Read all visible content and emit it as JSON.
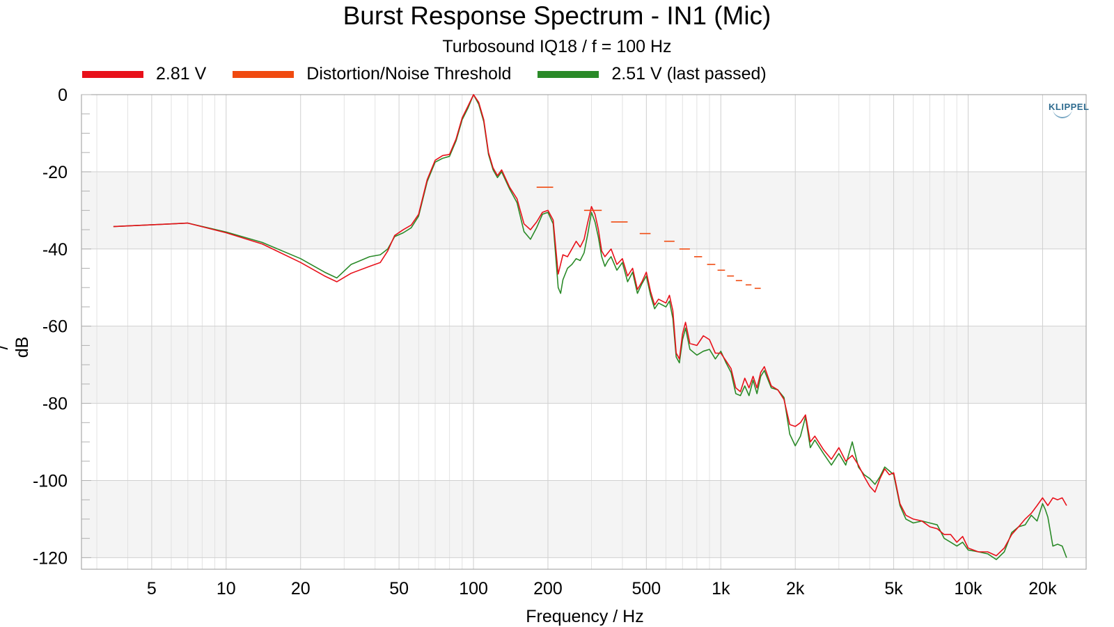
{
  "title": "Burst Response Spectrum - IN1 (Mic)",
  "subtitle": "Turbosound IQ18 / f = 100 Hz",
  "logo_text": "KLIPPEL",
  "legend": [
    {
      "label": "2.81 V",
      "color": "#e8101a"
    },
    {
      "label": "Distortion/Noise Threshold",
      "color": "#f04a10"
    },
    {
      "label": "2.51 V (last passed)",
      "color": "#2a8a28"
    }
  ],
  "chart_data": {
    "type": "line",
    "title": "Burst Response Spectrum - IN1 (Mic)",
    "subtitle": "Turbosound IQ18 / f = 100 Hz",
    "xlabel": "Frequency / Hz",
    "ylabel": "/ dB",
    "x_scale": "log",
    "xlim": [
      2.6,
      30000
    ],
    "ylim": [
      -123,
      0
    ],
    "grid": true,
    "legend_position": "top",
    "x_ticks": [
      {
        "value": 5,
        "label": "5"
      },
      {
        "value": 10,
        "label": "10"
      },
      {
        "value": 20,
        "label": "20"
      },
      {
        "value": 50,
        "label": "50"
      },
      {
        "value": 100,
        "label": "100"
      },
      {
        "value": 200,
        "label": "200"
      },
      {
        "value": 500,
        "label": "500"
      },
      {
        "value": 1000,
        "label": "1k"
      },
      {
        "value": 2000,
        "label": "2k"
      },
      {
        "value": 5000,
        "label": "5k"
      },
      {
        "value": 10000,
        "label": "10k"
      },
      {
        "value": 20000,
        "label": "20k"
      }
    ],
    "y_ticks": [
      0,
      -20,
      -40,
      -60,
      -80,
      -100,
      -120
    ],
    "series": [
      {
        "name": "2.81 V",
        "color": "#e8101a",
        "style": "line",
        "points": [
          [
            3.5,
            -34.2
          ],
          [
            7,
            -33.3
          ],
          [
            10,
            -35.8
          ],
          [
            14,
            -38.7
          ],
          [
            20,
            -43.5
          ],
          [
            25,
            -47.0
          ],
          [
            28,
            -48.5
          ],
          [
            32,
            -46.3
          ],
          [
            38,
            -44.5
          ],
          [
            42,
            -43.5
          ],
          [
            45,
            -40.5
          ],
          [
            48,
            -36.5
          ],
          [
            52,
            -35.0
          ],
          [
            56,
            -33.8
          ],
          [
            60,
            -31.0
          ],
          [
            65,
            -22.0
          ],
          [
            70,
            -17.0
          ],
          [
            75,
            -15.8
          ],
          [
            80,
            -15.5
          ],
          [
            85,
            -11.5
          ],
          [
            90,
            -6.0
          ],
          [
            95,
            -3.0
          ],
          [
            100,
            0.0
          ],
          [
            105,
            -2.0
          ],
          [
            110,
            -6.5
          ],
          [
            115,
            -15.0
          ],
          [
            120,
            -19.0
          ],
          [
            125,
            -21.0
          ],
          [
            130,
            -19.5
          ],
          [
            140,
            -24.0
          ],
          [
            150,
            -27.0
          ],
          [
            160,
            -33.5
          ],
          [
            170,
            -35.0
          ],
          [
            180,
            -33.0
          ],
          [
            190,
            -30.5
          ],
          [
            200,
            -30.0
          ],
          [
            210,
            -32.5
          ],
          [
            220,
            -46.5
          ],
          [
            230,
            -41.5
          ],
          [
            240,
            -42.0
          ],
          [
            250,
            -40.0
          ],
          [
            260,
            -38.0
          ],
          [
            270,
            -39.5
          ],
          [
            280,
            -37.5
          ],
          [
            290,
            -33.0
          ],
          [
            300,
            -29.0
          ],
          [
            310,
            -31.0
          ],
          [
            320,
            -35.0
          ],
          [
            330,
            -40.5
          ],
          [
            340,
            -42.0
          ],
          [
            350,
            -41.0
          ],
          [
            360,
            -40.0
          ],
          [
            380,
            -44.0
          ],
          [
            400,
            -42.5
          ],
          [
            420,
            -47.0
          ],
          [
            440,
            -45.0
          ],
          [
            460,
            -50.5
          ],
          [
            480,
            -48.5
          ],
          [
            500,
            -46.0
          ],
          [
            520,
            -51.0
          ],
          [
            540,
            -54.5
          ],
          [
            560,
            -53.0
          ],
          [
            600,
            -54.0
          ],
          [
            620,
            -52.0
          ],
          [
            640,
            -56.0
          ],
          [
            660,
            -67.0
          ],
          [
            680,
            -68.5
          ],
          [
            700,
            -62.0
          ],
          [
            720,
            -59.0
          ],
          [
            750,
            -64.5
          ],
          [
            800,
            -65.0
          ],
          [
            850,
            -62.5
          ],
          [
            900,
            -63.5
          ],
          [
            950,
            -67.0
          ],
          [
            1000,
            -67.0
          ],
          [
            1050,
            -69.0
          ],
          [
            1100,
            -71.0
          ],
          [
            1150,
            -76.0
          ],
          [
            1200,
            -77.0
          ],
          [
            1250,
            -73.5
          ],
          [
            1300,
            -76.0
          ],
          [
            1350,
            -73.0
          ],
          [
            1400,
            -76.0
          ],
          [
            1450,
            -72.0
          ],
          [
            1500,
            -70.5
          ],
          [
            1600,
            -75.5
          ],
          [
            1700,
            -76.5
          ],
          [
            1800,
            -79.0
          ],
          [
            1900,
            -85.5
          ],
          [
            2000,
            -86.0
          ],
          [
            2100,
            -85.0
          ],
          [
            2200,
            -83.0
          ],
          [
            2300,
            -90.0
          ],
          [
            2400,
            -88.5
          ],
          [
            2600,
            -92.0
          ],
          [
            2800,
            -94.5
          ],
          [
            3000,
            -91.5
          ],
          [
            3200,
            -95.0
          ],
          [
            3400,
            -93.5
          ],
          [
            3600,
            -96.0
          ],
          [
            3800,
            -99.0
          ],
          [
            4000,
            -101.5
          ],
          [
            4200,
            -103.0
          ],
          [
            4400,
            -99.5
          ],
          [
            4600,
            -97.0
          ],
          [
            4800,
            -98.5
          ],
          [
            5000,
            -98.0
          ],
          [
            5300,
            -106.0
          ],
          [
            5600,
            -109.0
          ],
          [
            6000,
            -110.0
          ],
          [
            6500,
            -110.5
          ],
          [
            7000,
            -112.0
          ],
          [
            7500,
            -112.5
          ],
          [
            8000,
            -114.0
          ],
          [
            8500,
            -114.0
          ],
          [
            9000,
            -116.0
          ],
          [
            9500,
            -114.5
          ],
          [
            10000,
            -117.5
          ],
          [
            11000,
            -118.5
          ],
          [
            12000,
            -118.5
          ],
          [
            13000,
            -119.5
          ],
          [
            14000,
            -117.5
          ],
          [
            15000,
            -114.0
          ],
          [
            16000,
            -112.0
          ],
          [
            17000,
            -110.0
          ],
          [
            18000,
            -108.5
          ],
          [
            19000,
            -106.5
          ],
          [
            20000,
            -104.5
          ],
          [
            21000,
            -106.5
          ],
          [
            22000,
            -104.5
          ],
          [
            23000,
            -105.0
          ],
          [
            24000,
            -104.5
          ],
          [
            25000,
            -106.5
          ]
        ]
      },
      {
        "name": "Distortion/Noise Threshold",
        "color": "#f04a10",
        "style": "segments",
        "segments": [
          [
            180,
            210,
            -24.0
          ],
          [
            280,
            330,
            -30.0
          ],
          [
            360,
            420,
            -33.0
          ],
          [
            470,
            520,
            -36.0
          ],
          [
            590,
            650,
            -38.0
          ],
          [
            680,
            750,
            -40.0
          ],
          [
            780,
            840,
            -42.0
          ],
          [
            880,
            950,
            -44.0
          ],
          [
            970,
            1040,
            -45.5
          ],
          [
            1060,
            1130,
            -47.0
          ],
          [
            1150,
            1220,
            -48.2
          ],
          [
            1260,
            1330,
            -49.3
          ],
          [
            1370,
            1450,
            -50.2
          ]
        ]
      },
      {
        "name": "2.51 V (last passed)",
        "color": "#2a8a28",
        "style": "line",
        "points": [
          [
            3.5,
            -34.2
          ],
          [
            7,
            -33.3
          ],
          [
            10,
            -35.6
          ],
          [
            14,
            -38.3
          ],
          [
            20,
            -42.5
          ],
          [
            25,
            -46.0
          ],
          [
            28,
            -47.5
          ],
          [
            32,
            -44.0
          ],
          [
            38,
            -42.0
          ],
          [
            42,
            -41.5
          ],
          [
            45,
            -40.0
          ],
          [
            48,
            -36.8
          ],
          [
            52,
            -35.8
          ],
          [
            56,
            -34.5
          ],
          [
            60,
            -31.5
          ],
          [
            65,
            -22.5
          ],
          [
            70,
            -17.5
          ],
          [
            75,
            -16.5
          ],
          [
            80,
            -16.0
          ],
          [
            85,
            -12.0
          ],
          [
            90,
            -6.5
          ],
          [
            95,
            -3.5
          ],
          [
            100,
            0.0
          ],
          [
            105,
            -2.5
          ],
          [
            110,
            -7.0
          ],
          [
            115,
            -15.5
          ],
          [
            120,
            -19.5
          ],
          [
            125,
            -21.5
          ],
          [
            130,
            -20.0
          ],
          [
            140,
            -24.5
          ],
          [
            150,
            -28.0
          ],
          [
            160,
            -35.5
          ],
          [
            170,
            -37.5
          ],
          [
            180,
            -34.5
          ],
          [
            190,
            -31.0
          ],
          [
            200,
            -30.5
          ],
          [
            210,
            -33.5
          ],
          [
            220,
            -50.0
          ],
          [
            225,
            -51.5
          ],
          [
            230,
            -48.0
          ],
          [
            240,
            -45.0
          ],
          [
            250,
            -44.0
          ],
          [
            260,
            -42.5
          ],
          [
            270,
            -43.0
          ],
          [
            280,
            -41.0
          ],
          [
            290,
            -36.0
          ],
          [
            300,
            -30.5
          ],
          [
            310,
            -33.0
          ],
          [
            320,
            -37.0
          ],
          [
            330,
            -42.0
          ],
          [
            340,
            -44.5
          ],
          [
            350,
            -43.0
          ],
          [
            360,
            -42.0
          ],
          [
            380,
            -45.5
          ],
          [
            400,
            -43.5
          ],
          [
            420,
            -48.5
          ],
          [
            440,
            -46.0
          ],
          [
            460,
            -51.5
          ],
          [
            480,
            -49.0
          ],
          [
            500,
            -47.0
          ],
          [
            520,
            -52.0
          ],
          [
            540,
            -55.5
          ],
          [
            560,
            -54.0
          ],
          [
            600,
            -55.0
          ],
          [
            620,
            -53.5
          ],
          [
            640,
            -58.0
          ],
          [
            660,
            -68.0
          ],
          [
            680,
            -69.5
          ],
          [
            700,
            -63.5
          ],
          [
            720,
            -60.5
          ],
          [
            750,
            -66.0
          ],
          [
            800,
            -67.5
          ],
          [
            850,
            -66.5
          ],
          [
            900,
            -66.0
          ],
          [
            950,
            -68.5
          ],
          [
            1000,
            -66.5
          ],
          [
            1050,
            -69.5
          ],
          [
            1100,
            -72.0
          ],
          [
            1150,
            -77.5
          ],
          [
            1200,
            -78.0
          ],
          [
            1250,
            -75.5
          ],
          [
            1300,
            -78.0
          ],
          [
            1350,
            -74.0
          ],
          [
            1400,
            -77.5
          ],
          [
            1450,
            -73.0
          ],
          [
            1500,
            -71.5
          ],
          [
            1600,
            -76.0
          ],
          [
            1700,
            -76.5
          ],
          [
            1800,
            -78.5
          ],
          [
            1900,
            -88.0
          ],
          [
            2000,
            -91.0
          ],
          [
            2100,
            -88.5
          ],
          [
            2200,
            -83.5
          ],
          [
            2300,
            -91.5
          ],
          [
            2400,
            -89.5
          ],
          [
            2600,
            -93.0
          ],
          [
            2800,
            -96.0
          ],
          [
            3000,
            -93.0
          ],
          [
            3200,
            -96.0
          ],
          [
            3400,
            -90.0
          ],
          [
            3600,
            -96.5
          ],
          [
            3800,
            -98.5
          ],
          [
            4000,
            -99.5
          ],
          [
            4200,
            -101.0
          ],
          [
            4400,
            -99.0
          ],
          [
            4600,
            -96.5
          ],
          [
            4800,
            -97.5
          ],
          [
            5000,
            -98.5
          ],
          [
            5300,
            -106.5
          ],
          [
            5600,
            -110.0
          ],
          [
            6000,
            -111.0
          ],
          [
            6500,
            -110.5
          ],
          [
            7000,
            -111.0
          ],
          [
            7500,
            -111.5
          ],
          [
            8000,
            -115.0
          ],
          [
            8500,
            -116.0
          ],
          [
            9000,
            -117.0
          ],
          [
            9500,
            -116.0
          ],
          [
            10000,
            -118.0
          ],
          [
            11000,
            -118.5
          ],
          [
            12000,
            -119.0
          ],
          [
            13000,
            -120.5
          ],
          [
            14000,
            -118.5
          ],
          [
            15000,
            -113.5
          ],
          [
            16000,
            -112.0
          ],
          [
            17000,
            -111.5
          ],
          [
            18000,
            -109.0
          ],
          [
            19000,
            -110.5
          ],
          [
            20000,
            -106.0
          ],
          [
            20500,
            -107.5
          ],
          [
            21000,
            -109.5
          ],
          [
            22000,
            -117.0
          ],
          [
            23000,
            -116.5
          ],
          [
            24000,
            -117.0
          ],
          [
            25000,
            -120.0
          ]
        ]
      }
    ]
  }
}
